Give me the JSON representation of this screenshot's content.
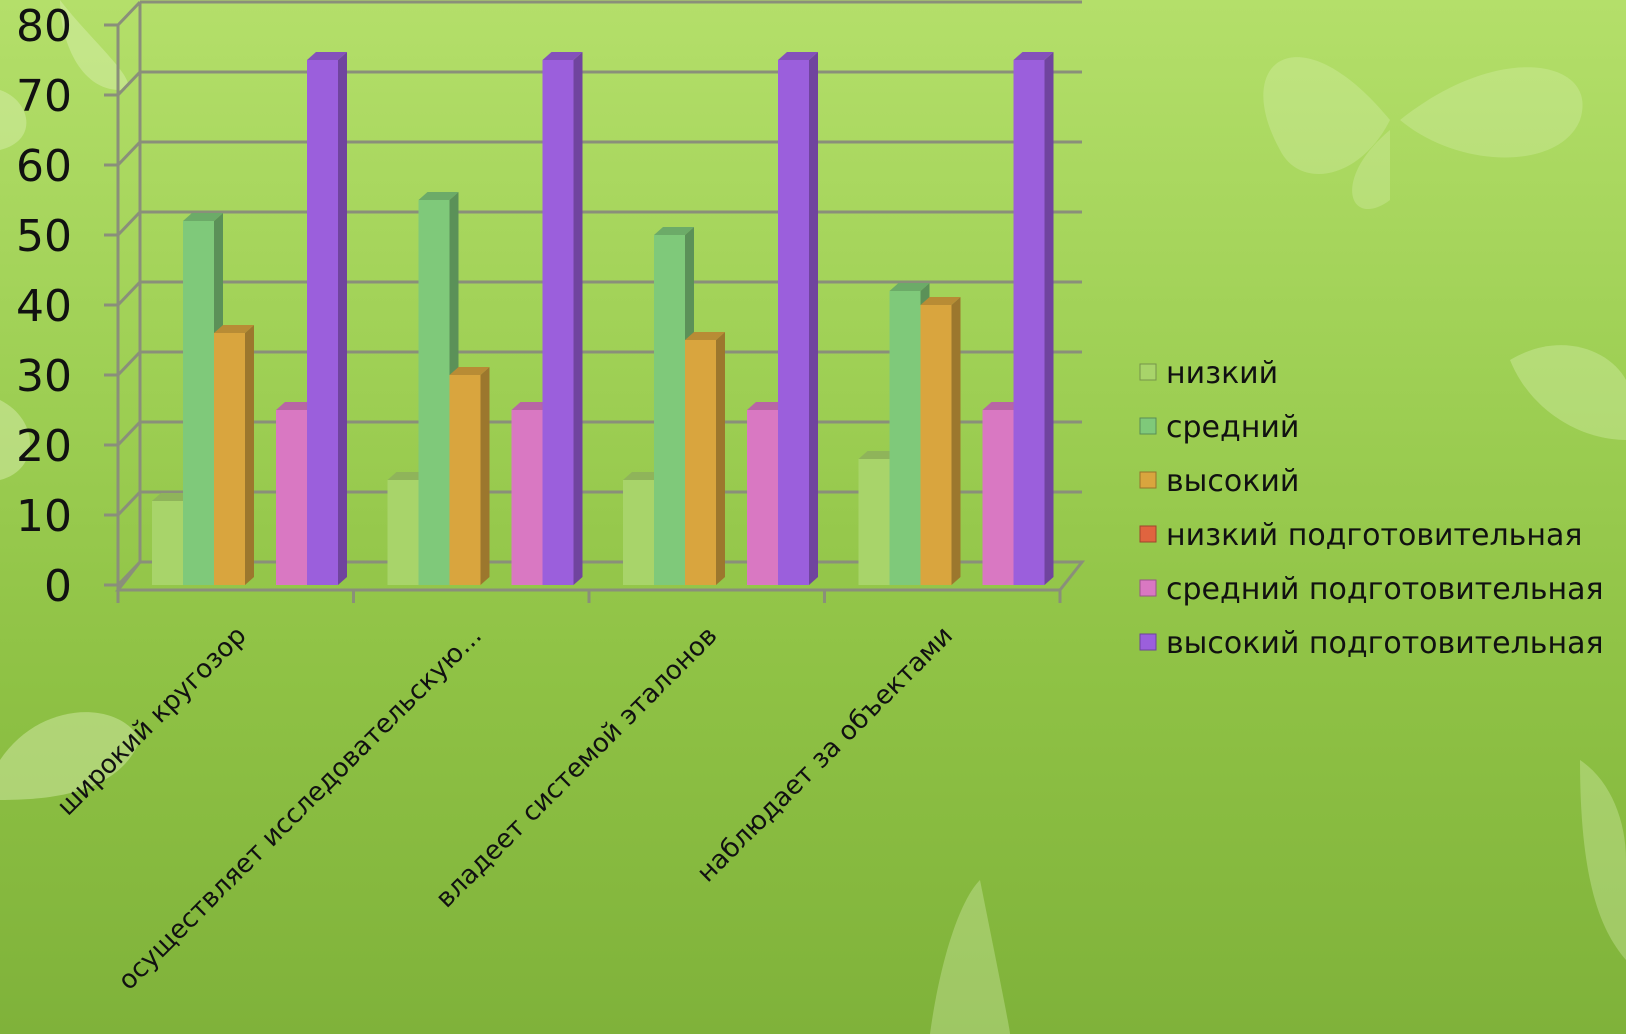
{
  "chart_data": {
    "type": "bar",
    "categories": [
      "широкий кругозор",
      "осуществляет исследовательскую...",
      "владеет системой эталонов",
      "наблюдает за объектами"
    ],
    "series": [
      {
        "name": "низкий",
        "color": "#a8d46a",
        "values": [
          12,
          15,
          15,
          18
        ]
      },
      {
        "name": "средний",
        "color": "#7fc97a",
        "values": [
          52,
          55,
          50,
          42
        ]
      },
      {
        "name": "высокий",
        "color": "#d9a53e",
        "values": [
          36,
          30,
          35,
          40
        ]
      },
      {
        "name": "низкий подготовительная",
        "color": "#e0643f",
        "values": [
          0,
          0,
          0,
          0
        ]
      },
      {
        "name": "средний подготовительная",
        "color": "#d978c2",
        "values": [
          25,
          25,
          25,
          25
        ]
      },
      {
        "name": "высокий подготовительная",
        "color": "#9b5fdc",
        "values": [
          75,
          75,
          75,
          75
        ]
      }
    ],
    "yticks": [
      "0",
      "10",
      "20",
      "30",
      "40",
      "50",
      "60",
      "70",
      "80"
    ],
    "ylim": [
      0,
      80
    ],
    "grid": true,
    "legend": "right"
  }
}
